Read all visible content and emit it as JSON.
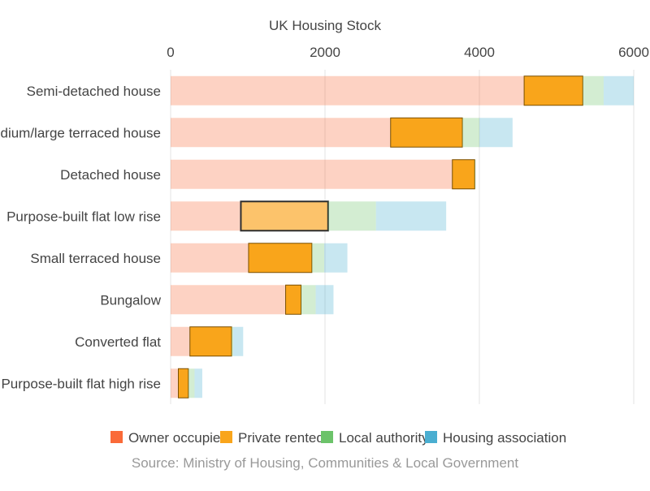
{
  "chart_data": {
    "type": "bar",
    "orientation": "horizontal",
    "stacked": true,
    "title": "UK Housing Stock",
    "source": "Source: Ministry of Housing, Communities & Local Government",
    "categories": [
      "Semi-detached house",
      "Medium/large terraced house",
      "Detached house",
      "Purpose-built flat low rise",
      "Small terraced house",
      "Bungalow",
      "Converted flat",
      "Purpose-built flat high rise"
    ],
    "series": [
      {
        "name": "Owner occupied",
        "color": "#fa6a38",
        "values": [
          4580,
          2850,
          3650,
          910,
          1010,
          1490,
          250,
          100
        ]
      },
      {
        "name": "Private rented",
        "color": "#f9a51b",
        "values": [
          760,
          930,
          290,
          1130,
          820,
          200,
          540,
          130
        ]
      },
      {
        "name": "Local authority",
        "color": "#6cc36a",
        "values": [
          270,
          220,
          10,
          620,
          160,
          190,
          20,
          80
        ]
      },
      {
        "name": "Housing association",
        "color": "#4aaed1",
        "values": [
          390,
          430,
          0,
          910,
          300,
          230,
          130,
          100
        ]
      }
    ],
    "highlight": {
      "series": "Private rented",
      "emphasized_category": "Purpose-built flat low rise"
    },
    "x_ticks": [
      "0",
      "2000",
      "4000",
      "6000"
    ],
    "xlim": [
      0,
      6000
    ],
    "grid": true,
    "legend_position": "bottom"
  }
}
